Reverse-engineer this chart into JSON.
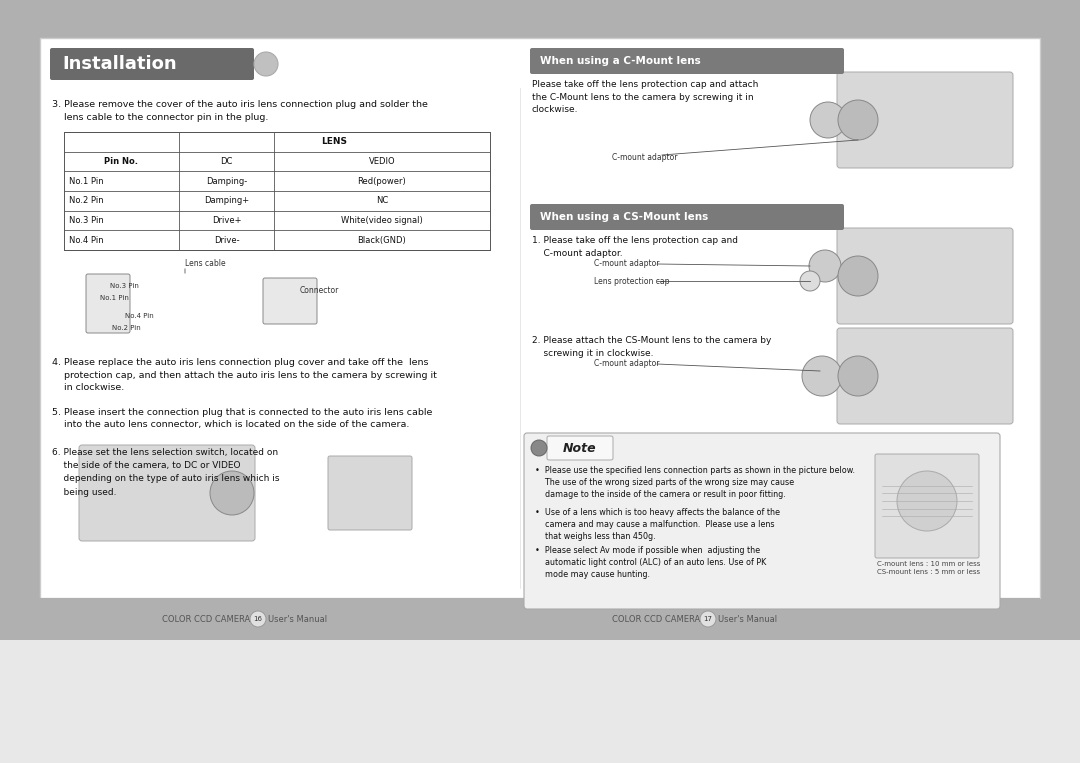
{
  "bg_outer": "#b0b0b0",
  "bg_inner": "#f5f5f5",
  "bg_white": "#ffffff",
  "title_bar_color": "#6a6a6a",
  "title_text": "Installation",
  "title_text_color": "#ffffff",
  "section_header_color": "#7a7a7a",
  "section_header_text_color": "#ffffff",
  "step3_text": "3. Please remove the cover of the auto iris lens connection plug and solder the\n    lens cable to the connector pin in the plug.",
  "table_rows": [
    [
      "No.1 Pin",
      "Damping-",
      "Red(power)"
    ],
    [
      "No.2 Pin",
      "Damping+",
      "NC"
    ],
    [
      "No.3 Pin",
      "Drive+",
      "White(video signal)"
    ],
    [
      "No.4 Pin",
      "Drive-",
      "Black(GND)"
    ]
  ],
  "step4_text": "4. Please replace the auto iris lens connection plug cover and take off the  lens\n    protection cap, and then attach the auto iris lens to the camera by screwing it\n    in clockwise.",
  "step5_text": "5. Please insert the connection plug that is connected to the auto iris lens cable\n    into the auto lens connector, which is located on the side of the camera.",
  "step6_text": "6. Please set the lens selection switch, located on\n    the side of the camera, to DC or VIDEO\n    depending on the type of auto iris lens which is\n    being used.",
  "c_mount_header": "When using a C-Mount lens",
  "c_mount_text": "Please take off the lens protection cap and attach\nthe C-Mount lens to the camera by screwing it in\nclockwise.",
  "c_mount_label": "C-mount adaptor",
  "cs_mount_header": "When using a CS-Mount lens",
  "cs_mount_step1": "1. Please take off the lens protection cap and\n    C-mount adaptor.",
  "cs_mount_label1": "C-mount adaptor",
  "cs_mount_label2": "Lens protection cap",
  "cs_mount_step2": "2. Please attach the CS-Mount lens to the camera by\n    screwing it in clockwise.",
  "cs_mount_label3": "C-mount adaptor",
  "note_header": "Note",
  "note_bullet1": "•  Please use the specified lens connection parts as shown in the picture below.\n    The use of the wrong sized parts of the wrong size may cause\n    damage to the inside of the camera or result in poor fitting.",
  "note_bullet2": "•  Use of a lens which is too heavy affects the balance of the\n    camera and may cause a malfunction.  Please use a lens\n    that weighs less than 450g.",
  "note_bullet3": "•  Please select Av mode if possible when  adjusting the\n    automatic light control (ALC) of an auto lens. Use of PK\n    mode may cause hunting.",
  "note_label1": "C-mount lens : 10 mm or less\nCS-mount lens : 5 mm or less",
  "footer_left": "COLOR CCD CAMERA",
  "footer_left_num": "16",
  "footer_left_rest": "User's Manual",
  "footer_right": "COLOR CCD CAMERA",
  "footer_right_num": "17",
  "footer_right_rest": "User's Manual"
}
